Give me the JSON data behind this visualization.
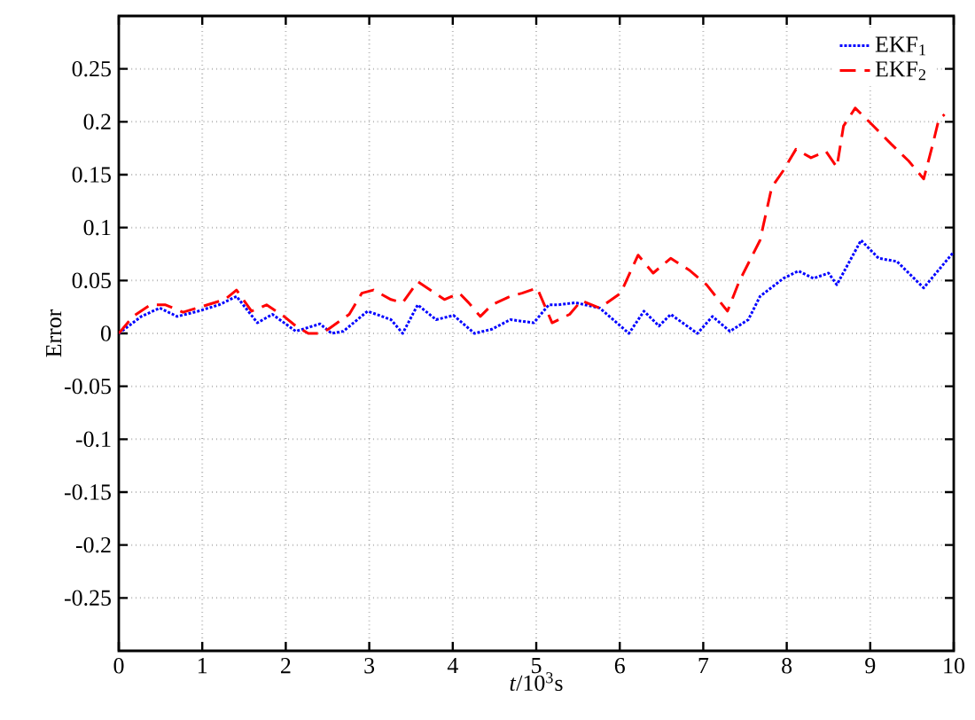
{
  "chart_data": {
    "type": "line",
    "xlabel": "*t*/10$^{3}$s",
    "ylabel": "Error",
    "xlim": [
      0,
      10
    ],
    "ylim": [
      -0.3,
      0.3
    ],
    "xticks": [
      0,
      1,
      2,
      3,
      4,
      5,
      6,
      7,
      8,
      9,
      10
    ],
    "yticks": [
      -0.25,
      -0.2,
      -0.15,
      -0.1,
      -0.05,
      0,
      0.05,
      0.1,
      0.15,
      0.2,
      0.25
    ],
    "grid": true,
    "legend": "top right",
    "series": [
      {
        "name": "EKF$_{1}$",
        "color": "#0000ff",
        "line_style": "dotted",
        "x": [
          0,
          0.27,
          0.49,
          0.7,
          0.95,
          1.2,
          1.41,
          1.66,
          1.84,
          2.12,
          2.41,
          2.55,
          2.69,
          2.98,
          3.26,
          3.4,
          3.58,
          3.8,
          4.01,
          4.26,
          4.47,
          4.69,
          4.97,
          5.15,
          5.26,
          5.47,
          5.76,
          6.11,
          6.29,
          6.47,
          6.61,
          6.93,
          7.11,
          7.32,
          7.54,
          7.68,
          7.96,
          8.14,
          8.32,
          8.5,
          8.6,
          8.89,
          9.1,
          9.32,
          9.64,
          9.82,
          10.0
        ],
        "values": [
          0,
          0.016,
          0.024,
          0.016,
          0.021,
          0.027,
          0.035,
          0.01,
          0.018,
          0.002,
          0.009,
          0,
          0.002,
          0.021,
          0.013,
          0,
          0.027,
          0.013,
          0.017,
          0,
          0.004,
          0.013,
          0.01,
          0.027,
          0.027,
          0.029,
          0.024,
          0,
          0.021,
          0.007,
          0.018,
          0,
          0.016,
          0.002,
          0.013,
          0.035,
          0.052,
          0.059,
          0.052,
          0.057,
          0.046,
          0.088,
          0.071,
          0.068,
          0.043,
          0.06,
          0.077
        ]
      },
      {
        "name": "EKF$_{2}$",
        "color": "#ff0000",
        "line_style": "dashed",
        "x": [
          0,
          0.17,
          0.38,
          0.56,
          0.77,
          1.02,
          1.27,
          1.41,
          1.59,
          1.77,
          1.98,
          2.12,
          2.27,
          2.41,
          2.51,
          2.76,
          2.91,
          3.05,
          3.26,
          3.4,
          3.58,
          3.73,
          3.9,
          4.08,
          4.19,
          4.33,
          4.47,
          4.69,
          4.83,
          5.01,
          5.19,
          5.4,
          5.54,
          5.76,
          6.01,
          6.22,
          6.4,
          6.61,
          6.83,
          7.04,
          7.29,
          7.43,
          7.68,
          7.82,
          7.96,
          8.11,
          8.29,
          8.47,
          8.6,
          8.68,
          8.82,
          9.0,
          9.25,
          9.46,
          9.64,
          9.75,
          9.82,
          9.89
        ],
        "values": [
          0,
          0.016,
          0.027,
          0.027,
          0.02,
          0.026,
          0.032,
          0.041,
          0.021,
          0.027,
          0.016,
          0.007,
          0,
          0,
          0.004,
          0.018,
          0.038,
          0.041,
          0.032,
          0.029,
          0.049,
          0.041,
          0.032,
          0.038,
          0.029,
          0.016,
          0.027,
          0.035,
          0.038,
          0.043,
          0.01,
          0.018,
          0.031,
          0.024,
          0.038,
          0.074,
          0.057,
          0.071,
          0.06,
          0.046,
          0.021,
          0.049,
          0.088,
          0.138,
          0.154,
          0.174,
          0.166,
          0.172,
          0.157,
          0.196,
          0.213,
          0.199,
          0.179,
          0.163,
          0.146,
          0.179,
          0.202,
          0.207
        ]
      }
    ]
  }
}
